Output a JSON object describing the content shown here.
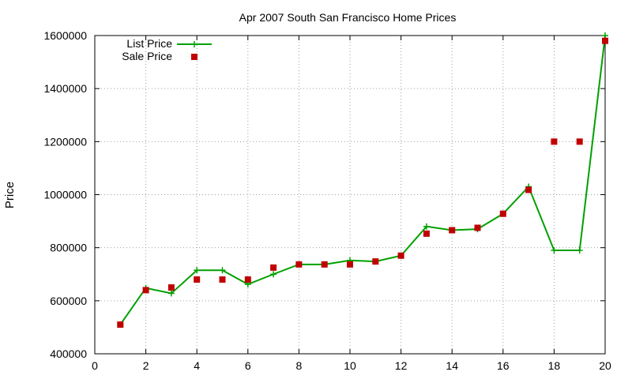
{
  "chart_data": {
    "type": "line",
    "title": "Apr 2007 South San Francisco Home Prices",
    "xlabel": "",
    "ylabel": "Price",
    "xlim": [
      0,
      20
    ],
    "ylim": [
      400000,
      1600000
    ],
    "x_ticks": [
      0,
      2,
      4,
      6,
      8,
      10,
      12,
      14,
      16,
      18,
      20
    ],
    "y_ticks": [
      400000,
      600000,
      800000,
      1000000,
      1200000,
      1400000,
      1600000
    ],
    "grid": true,
    "legend_position": "top-left",
    "series": [
      {
        "name": "List Price",
        "style": "line-with-plus-markers",
        "color": "#00a000",
        "x": [
          1,
          2,
          3,
          4,
          5,
          6,
          7,
          8,
          9,
          10,
          11,
          12,
          13,
          14,
          15,
          16,
          17,
          18,
          19,
          20
        ],
        "values": [
          510000,
          648000,
          628000,
          715000,
          715000,
          662000,
          700000,
          737000,
          737000,
          752000,
          748000,
          770000,
          880000,
          866000,
          870000,
          928000,
          1030000,
          790000,
          790000,
          1600000
        ]
      },
      {
        "name": "Sale Price",
        "style": "square-markers",
        "color": "#c00000",
        "x": [
          1,
          2,
          3,
          4,
          5,
          6,
          7,
          8,
          9,
          10,
          11,
          12,
          13,
          14,
          15,
          16,
          17,
          18,
          19,
          20
        ],
        "values": [
          510000,
          640000,
          650000,
          680000,
          680000,
          680000,
          725000,
          737000,
          737000,
          737000,
          748000,
          770000,
          853000,
          866000,
          875000,
          928000,
          1018000,
          1200000,
          1200000,
          1580000
        ]
      }
    ]
  }
}
